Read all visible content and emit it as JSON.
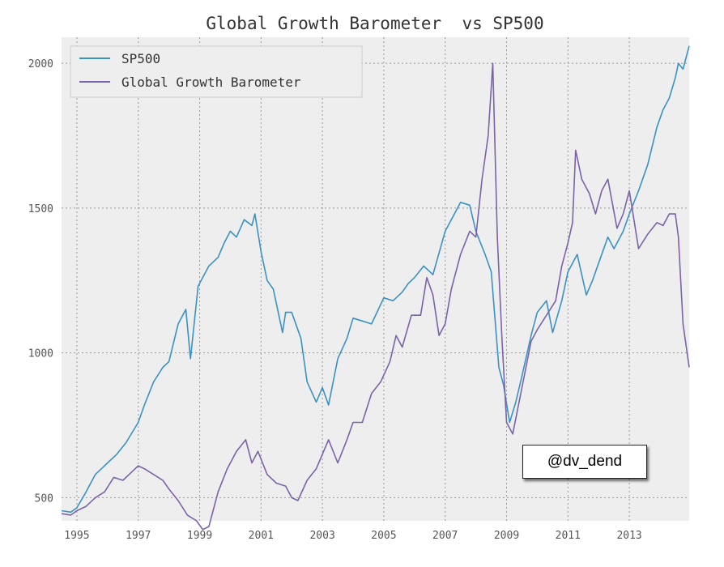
{
  "colors": {
    "background": "#eeeeee",
    "sp500": "#3a92c2",
    "barometer": "#7a63a8"
  },
  "watermark": "@dv_dend",
  "chart_data": {
    "type": "line",
    "title": "Global Growth Barometer  vs SP500",
    "xlabel": "",
    "ylabel": "",
    "xlim": [
      1994.5,
      2014.95
    ],
    "ylim": [
      420,
      2090
    ],
    "x_ticks": [
      1995,
      1997,
      1999,
      2001,
      2003,
      2005,
      2007,
      2009,
      2011,
      2013
    ],
    "x_tick_labels": [
      "1995",
      "1997",
      "1999",
      "2001",
      "2003",
      "2005",
      "2007",
      "2009",
      "2011",
      "2013"
    ],
    "y_ticks": [
      500,
      1000,
      1500,
      2000
    ],
    "y_tick_labels": [
      "500",
      "1000",
      "1500",
      "2000"
    ],
    "grid": true,
    "legend_position": "top-left",
    "series": [
      {
        "name": "SP500",
        "color": "#3a92c2",
        "x": [
          1994.5,
          1994.8,
          1995.0,
          1995.3,
          1995.6,
          1996.0,
          1996.3,
          1996.6,
          1997.0,
          1997.2,
          1997.5,
          1997.8,
          1998.0,
          1998.3,
          1998.55,
          1998.7,
          1998.95,
          1999.3,
          1999.6,
          1999.8,
          2000.0,
          2000.2,
          2000.45,
          2000.7,
          2000.8,
          2001.0,
          2001.2,
          2001.4,
          2001.7,
          2001.8,
          2002.0,
          2002.3,
          2002.5,
          2002.8,
          2003.0,
          2003.2,
          2003.5,
          2003.8,
          2004.0,
          2004.3,
          2004.6,
          2005.0,
          2005.3,
          2005.6,
          2005.8,
          2006.0,
          2006.3,
          2006.6,
          2007.0,
          2007.3,
          2007.5,
          2007.8,
          2008.0,
          2008.3,
          2008.5,
          2008.75,
          2008.9,
          2009.1,
          2009.3,
          2009.5,
          2009.8,
          2010.0,
          2010.3,
          2010.5,
          2010.8,
          2011.0,
          2011.3,
          2011.6,
          2011.8,
          2012.0,
          2012.3,
          2012.5,
          2012.8,
          2013.0,
          2013.3,
          2013.6,
          2013.9,
          2014.1,
          2014.3,
          2014.5,
          2014.6,
          2014.75,
          2014.95
        ],
        "y": [
          455,
          450,
          465,
          520,
          580,
          620,
          650,
          690,
          760,
          820,
          900,
          950,
          970,
          1100,
          1150,
          980,
          1230,
          1300,
          1330,
          1380,
          1420,
          1400,
          1460,
          1440,
          1480,
          1350,
          1250,
          1220,
          1070,
          1140,
          1140,
          1050,
          900,
          830,
          880,
          820,
          980,
          1050,
          1120,
          1110,
          1100,
          1190,
          1180,
          1210,
          1240,
          1260,
          1300,
          1270,
          1420,
          1480,
          1520,
          1510,
          1420,
          1340,
          1280,
          950,
          890,
          760,
          830,
          920,
          1060,
          1140,
          1180,
          1070,
          1180,
          1280,
          1340,
          1200,
          1250,
          1310,
          1400,
          1360,
          1420,
          1480,
          1560,
          1650,
          1780,
          1840,
          1880,
          1950,
          2000,
          1980,
          2060
        ]
      },
      {
        "name": "Global Growth Barometer",
        "color": "#7a63a8",
        "x": [
          1994.5,
          1994.8,
          1995.0,
          1995.3,
          1995.6,
          1995.9,
          1996.2,
          1996.5,
          1996.8,
          1997.0,
          1997.2,
          1997.5,
          1997.8,
          1998.0,
          1998.3,
          1998.6,
          1998.9,
          1999.1,
          1999.3,
          1999.6,
          1999.9,
          2000.2,
          2000.5,
          2000.7,
          2000.9,
          2001.2,
          2001.5,
          2001.8,
          2002.0,
          2002.2,
          2002.5,
          2002.8,
          2003.0,
          2003.2,
          2003.5,
          2003.8,
          2004.0,
          2004.3,
          2004.6,
          2004.9,
          2005.2,
          2005.4,
          2005.6,
          2005.9,
          2006.2,
          2006.4,
          2006.6,
          2006.8,
          2007.0,
          2007.2,
          2007.5,
          2007.8,
          2008.0,
          2008.2,
          2008.4,
          2008.55,
          2008.7,
          2008.85,
          2009.0,
          2009.2,
          2009.5,
          2009.8,
          2010.0,
          2010.3,
          2010.6,
          2010.8,
          2011.0,
          2011.15,
          2011.25,
          2011.45,
          2011.7,
          2011.9,
          2012.1,
          2012.3,
          2012.6,
          2012.8,
          2013.0,
          2013.3,
          2013.6,
          2013.9,
          2014.1,
          2014.3,
          2014.5,
          2014.6,
          2014.75,
          2014.95
        ],
        "y": [
          445,
          440,
          455,
          470,
          500,
          520,
          570,
          560,
          590,
          610,
          600,
          580,
          560,
          530,
          490,
          440,
          420,
          390,
          400,
          520,
          600,
          660,
          700,
          620,
          660,
          580,
          550,
          540,
          500,
          490,
          560,
          600,
          650,
          700,
          620,
          700,
          760,
          760,
          860,
          900,
          970,
          1060,
          1020,
          1130,
          1130,
          1260,
          1200,
          1060,
          1100,
          1220,
          1340,
          1420,
          1400,
          1600,
          1750,
          2000,
          1400,
          1050,
          760,
          720,
          880,
          1040,
          1080,
          1130,
          1180,
          1300,
          1380,
          1450,
          1700,
          1600,
          1550,
          1480,
          1560,
          1600,
          1430,
          1480,
          1560,
          1360,
          1410,
          1450,
          1440,
          1480,
          1480,
          1400,
          1100,
          950
        ]
      }
    ]
  }
}
